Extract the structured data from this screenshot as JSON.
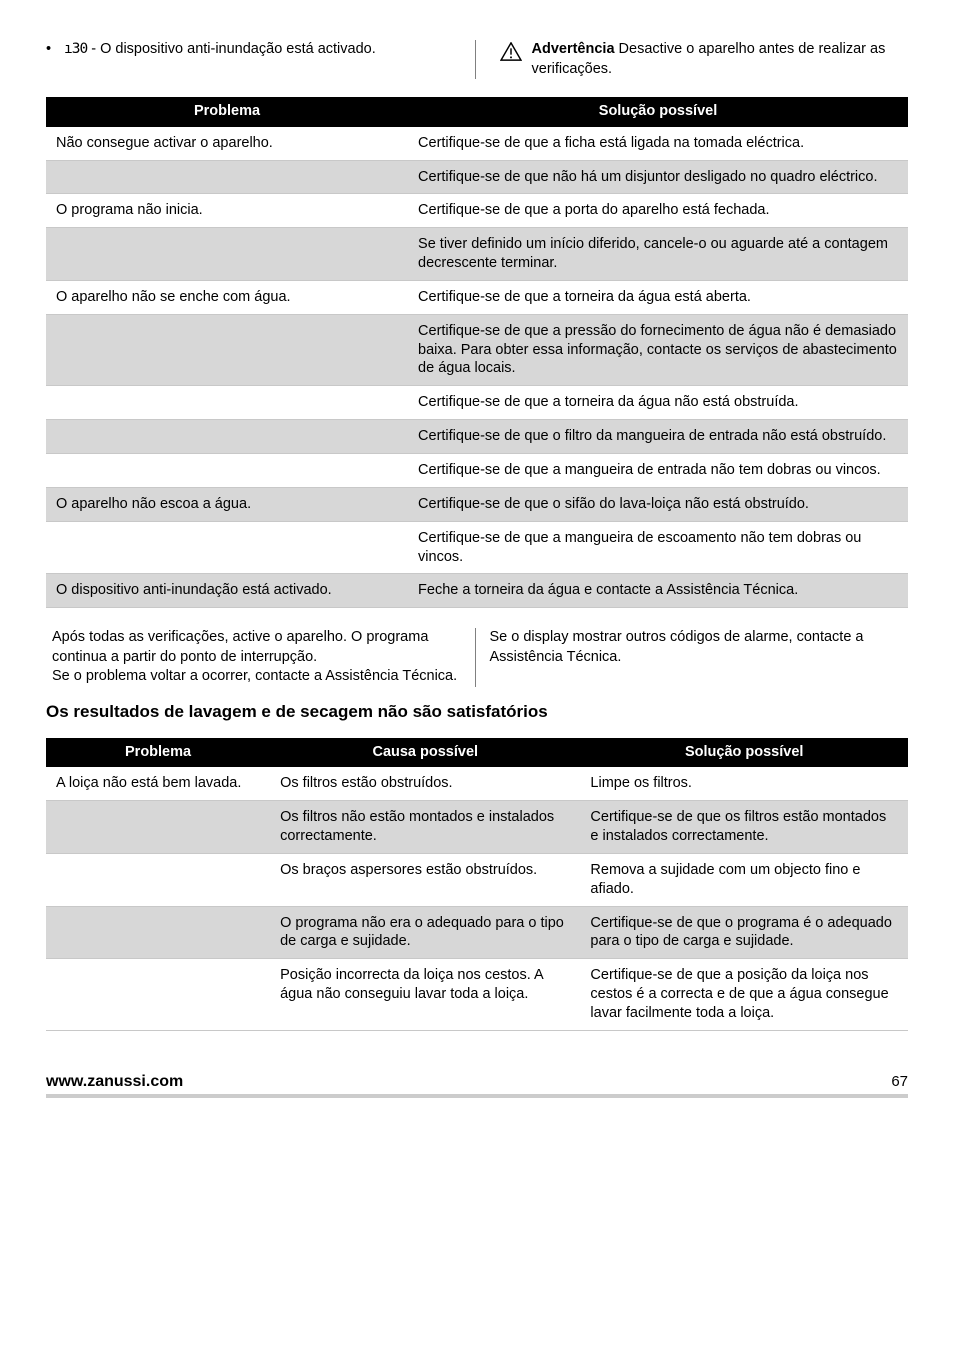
{
  "top": {
    "bullet_text": " - O dispositivo anti-inundação está activado.",
    "seg_code": "ı30",
    "warning_label": "Advertência",
    "warning_text": " Desactive o aparelho antes de realizar as verificações."
  },
  "table1": {
    "headers": {
      "c1": "Problema",
      "c2": "Solução possível"
    },
    "rows": [
      {
        "shade": "white",
        "c1": "Não consegue activar o aparelho.",
        "c2": "Certifique-se de que a ficha está ligada na tomada eléctrica."
      },
      {
        "shade": "shade",
        "c1": "",
        "c2": "Certifique-se de que não há um disjuntor desligado no quadro eléctrico."
      },
      {
        "shade": "white",
        "c1": "O programa não inicia.",
        "c2": "Certifique-se de que a porta do aparelho está fechada."
      },
      {
        "shade": "shade",
        "c1": "",
        "c2": "Se tiver definido um início diferido, cancele-o ou aguarde até a contagem decrescente terminar."
      },
      {
        "shade": "white",
        "c1": "O aparelho não se enche com água.",
        "c2": "Certifique-se de que a torneira da água está aberta."
      },
      {
        "shade": "shade",
        "c1": "",
        "c2": "Certifique-se de que a pressão do fornecimento de água não é demasiado baixa. Para obter essa informação, contacte os serviços de abastecimento de água locais."
      },
      {
        "shade": "white",
        "c1": "",
        "c2": "Certifique-se de que a torneira da água não está obstruída."
      },
      {
        "shade": "shade",
        "c1": "",
        "c2": "Certifique-se de que o filtro da mangueira de entrada não está obstruído."
      },
      {
        "shade": "white",
        "c1": "",
        "c2": "Certifique-se de que a mangueira de entrada não tem dobras ou vincos."
      },
      {
        "shade": "shade",
        "c1": "O aparelho não escoa a água.",
        "c2": "Certifique-se de que o sifão do lava-loiça não está obstruído."
      },
      {
        "shade": "white",
        "c1": "",
        "c2": "Certifique-se de que a mangueira de escoamento não tem dobras ou vincos."
      },
      {
        "shade": "shade",
        "c1": "O dispositivo anti-inundação está activado.",
        "c2": "Feche a torneira da água e contacte a Assistência Técnica."
      }
    ]
  },
  "mid": {
    "left": "Após todas as verificações, active o aparelho. O programa continua a partir do ponto de interrupção.\nSe o problema voltar a ocorrer, contacte a Assistência Técnica.",
    "right": "Se o display mostrar outros códigos de alarme, contacte a Assistência Técnica."
  },
  "section_heading": "Os resultados de lavagem e de secagem não são satisfatórios",
  "table2": {
    "headers": {
      "c1": "Problema",
      "c2": "Causa possível",
      "c3": "Solução possível"
    },
    "rows": [
      {
        "shade": "white",
        "c1": "A loiça não está bem lavada.",
        "c2": "Os filtros estão obstruídos.",
        "c3": "Limpe os filtros."
      },
      {
        "shade": "shade",
        "c1": "",
        "c2": "Os filtros não estão montados e instalados correctamente.",
        "c3": "Certifique-se de que os filtros estão montados e instalados correctamente."
      },
      {
        "shade": "white",
        "c1": "",
        "c2": "Os braços aspersores estão obstruídos.",
        "c3": "Remova a sujidade com um objecto fino e afiado."
      },
      {
        "shade": "shade",
        "c1": "",
        "c2": "O programa não era o adequado para o tipo de carga e sujidade.",
        "c3": "Certifique-se de que o programa é o adequado para o tipo de carga e sujidade."
      },
      {
        "shade": "white",
        "c1": "",
        "c2": "Posição incorrecta da loiça nos cestos. A água não conseguiu lavar toda a loiça.",
        "c3": "Certifique-se de que a posição da loiça nos cestos é a correcta e de que a água consegue lavar facilmente toda a loiça."
      }
    ]
  },
  "footer": {
    "url": "www.zanussi.com",
    "page": "67"
  },
  "colors": {
    "header_bg": "#000000",
    "header_fg": "#ffffff",
    "shade_bg": "#d7d7d7",
    "border": "#c8c8c8",
    "footer_rule": "#cccccc"
  }
}
